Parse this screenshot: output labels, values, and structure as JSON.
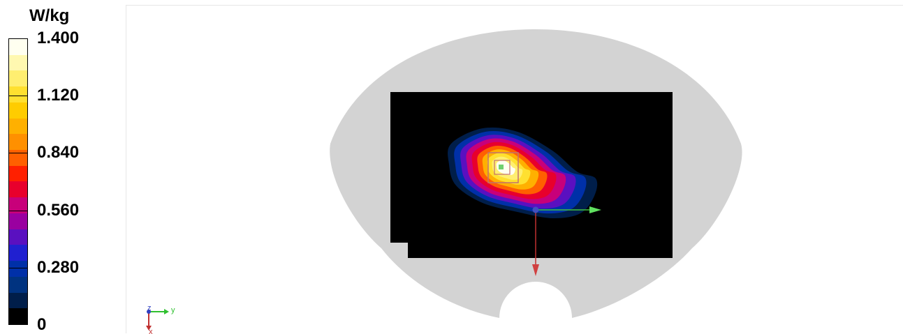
{
  "chart_data": {
    "type": "heatmap",
    "colorbar": {
      "unit": "W/kg",
      "min": 0,
      "max": 1.4,
      "tick_labels": [
        "1.400",
        "1.120",
        "0.840",
        "0.560",
        "0.280",
        "0"
      ],
      "tick_values": [
        1.4,
        1.12,
        0.84,
        0.56,
        0.28,
        0
      ],
      "bands": [
        "#fffff0",
        "#fff8b0",
        "#ffee70",
        "#ffe030",
        "#ffcc00",
        "#ffb000",
        "#ff9000",
        "#ff6000",
        "#ff2000",
        "#e8002c",
        "#c8007a",
        "#9a00a0",
        "#5a10c0",
        "#2020d0",
        "#0030a8",
        "#003380",
        "#001e4a",
        "#000000"
      ]
    },
    "field": {
      "peak_value": 1.4,
      "contour_levels": [
        0.1,
        0.28,
        0.42,
        0.56,
        0.7,
        0.84,
        0.98,
        1.12,
        1.26,
        1.4
      ]
    },
    "axes_triad": {
      "y_label": "y",
      "z_label": "z",
      "x_label": "x"
    }
  }
}
